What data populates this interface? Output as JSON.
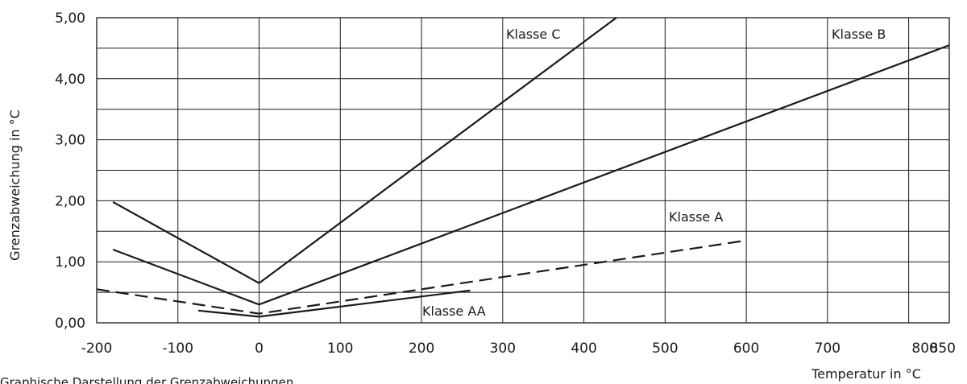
{
  "chart_data": {
    "type": "line",
    "title": "",
    "caption": "Graphische Darstellung der Grenzabweichungen",
    "xlabel": "Temperatur in °C",
    "ylabel": "Grenzabweichung in °C",
    "xlim": [
      -200,
      850
    ],
    "ylim": [
      0,
      5
    ],
    "grid": true,
    "x_ticks": [
      "-200",
      "-100",
      "0",
      "100",
      "200",
      "300",
      "400",
      "500",
      "600",
      "700",
      "800",
      "850"
    ],
    "x_tick_values": [
      -200,
      -100,
      0,
      100,
      200,
      300,
      400,
      500,
      600,
      700,
      800,
      850
    ],
    "y_ticks": [
      "0,00",
      "1,00",
      "2,00",
      "3,00",
      "4,00",
      "5,00"
    ],
    "y_tick_values": [
      0,
      1,
      2,
      3,
      4,
      5
    ],
    "series": [
      {
        "name": "Klasse C",
        "style": "solid",
        "x": [
          -180,
          0,
          440
        ],
        "y": [
          1.98,
          0.65,
          5.0
        ]
      },
      {
        "name": "Klasse B",
        "style": "solid",
        "x": [
          -180,
          0,
          850
        ],
        "y": [
          1.2,
          0.3,
          4.55
        ]
      },
      {
        "name": "Klasse A",
        "style": "dashed",
        "x": [
          -200,
          0,
          600
        ],
        "y": [
          0.55,
          0.15,
          1.35
        ]
      },
      {
        "name": "Klasse AA",
        "style": "solid",
        "x": [
          -75,
          0,
          260
        ],
        "y": [
          0.2,
          0.1,
          0.53
        ]
      }
    ]
  },
  "colors": {
    "line": "#1a1a1a",
    "grid": "#1a1a1a",
    "background": "#ffffff"
  }
}
